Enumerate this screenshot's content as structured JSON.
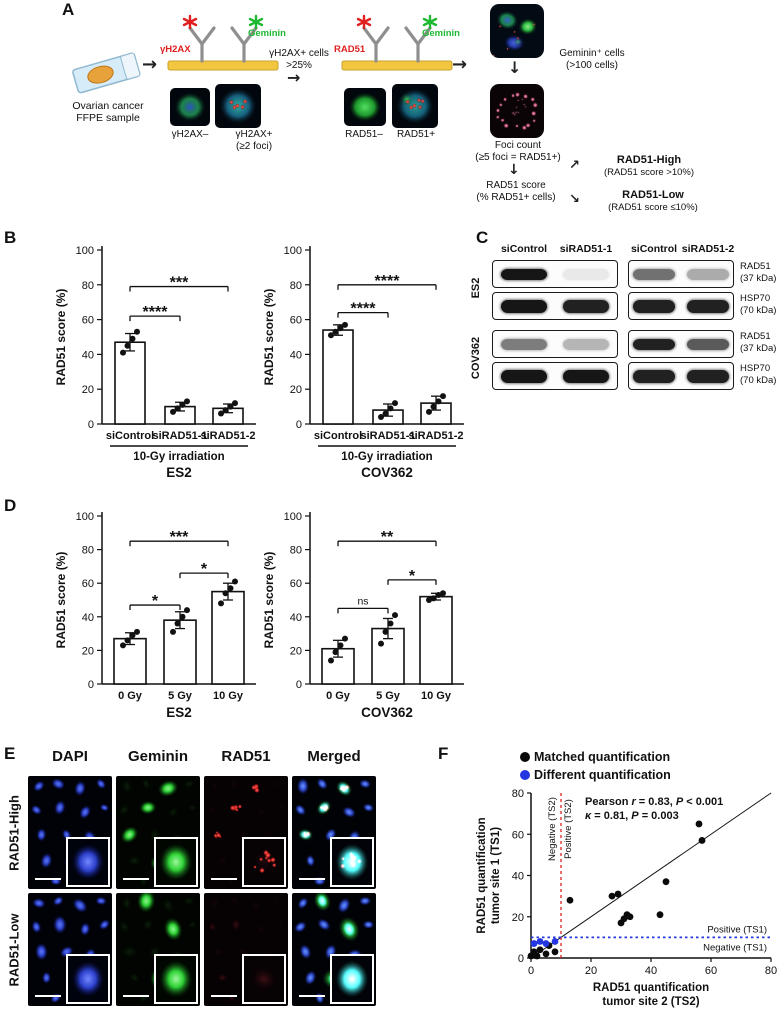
{
  "panel_labels": {
    "a": "A",
    "b": "B",
    "c": "C",
    "d": "D",
    "e": "E",
    "f": "F"
  },
  "icons": {
    "arrow_right": "→",
    "arrow_down": "↓",
    "arrow_up_right": "↗",
    "arrow_down_right": "↘"
  },
  "panel_a": {
    "sample_caption": "Ovarian cancer\nFFPE sample",
    "schematic1": {
      "red_label": "γH2AX",
      "green_label": "Geminin"
    },
    "img1_caption": "γH2AX–",
    "img2_caption": "γH2AX+\n(≥2 foci)",
    "arrow1_caption": "γH2AX+ cells\n>25%",
    "schematic2": {
      "red_label": "RAD51",
      "green_label": "Geminin"
    },
    "img3_caption": "RAD51–",
    "img4_caption": "RAD51+",
    "geminin_caption": "Geminin⁺ cells\n(>100 cells)",
    "foci_caption": "Foci count\n(≥5 foci = RAD51+)",
    "score_caption": "RAD51 score\n(% RAD51+ cells)",
    "high_title": "RAD51-High",
    "high_sub": "(RAD51 score >10%)",
    "low_title": "RAD51-Low",
    "low_sub": "(RAD51 score ≤10%)"
  },
  "panel_c": {
    "left_header": [
      "siControl",
      "siRAD51-1"
    ],
    "right_header": [
      "siControl",
      "siRAD51-2"
    ],
    "groups": [
      {
        "cell_line": "ES2",
        "rows": [
          {
            "protein": "RAD51",
            "kda": "(37 kDa)",
            "left": [
              1,
              0.08
            ],
            "right": [
              0.6,
              0.35
            ]
          },
          {
            "protein": "HSP70",
            "kda": "(70 kDa)",
            "left": [
              1,
              0.95
            ],
            "right": [
              0.95,
              0.95
            ]
          }
        ]
      },
      {
        "cell_line": "COV362",
        "rows": [
          {
            "protein": "RAD51",
            "kda": "(37 kDa)",
            "left": [
              0.55,
              0.3
            ],
            "right": [
              0.95,
              0.7
            ]
          },
          {
            "protein": "HSP70",
            "kda": "(70 kDa)",
            "left": [
              1,
              1
            ],
            "right": [
              0.95,
              0.95
            ]
          }
        ]
      }
    ]
  },
  "panel_e": {
    "col_headers": [
      "DAPI",
      "Geminin",
      "RAD51",
      "Merged"
    ],
    "row_labels": [
      "RAD51-High",
      "RAD51-Low"
    ]
  },
  "chart_data": [
    {
      "id": "B-ES2",
      "type": "bar",
      "title": "ES2",
      "ylabel": "RAD51 score (%)",
      "ylim": [
        0,
        100
      ],
      "ytick_step": 20,
      "group_label": "10-Gy irradiation",
      "categories": [
        "siControl",
        "siRAD51-1",
        "siRAD51-2"
      ],
      "values": [
        47,
        10,
        9
      ],
      "errors": [
        5,
        2.5,
        2.5
      ],
      "points": [
        [
          41,
          45,
          49,
          53
        ],
        [
          7,
          9,
          11,
          13
        ],
        [
          6,
          8,
          10,
          12
        ]
      ],
      "significance": [
        {
          "a": 0,
          "b": 1,
          "y": 62,
          "label": "****"
        },
        {
          "a": 0,
          "b": 2,
          "y": 79,
          "label": "***"
        }
      ]
    },
    {
      "id": "B-COV362",
      "type": "bar",
      "title": "COV362",
      "ylabel": "RAD51 score (%)",
      "ylim": [
        0,
        100
      ],
      "ytick_step": 20,
      "group_label": "10-Gy irradiation",
      "categories": [
        "siControl",
        "siRAD51-1",
        "siRAD51-2"
      ],
      "values": [
        54,
        8,
        12
      ],
      "errors": [
        3,
        3.5,
        4
      ],
      "points": [
        [
          51,
          53,
          55,
          57
        ],
        [
          4,
          6,
          9,
          12
        ],
        [
          7,
          10,
          13,
          16
        ]
      ],
      "significance": [
        {
          "a": 0,
          "b": 1,
          "y": 64,
          "label": "****"
        },
        {
          "a": 0,
          "b": 2,
          "y": 80,
          "label": "****"
        }
      ]
    },
    {
      "id": "D-ES2",
      "type": "bar",
      "title": "ES2",
      "ylabel": "RAD51 score (%)",
      "ylim": [
        0,
        100
      ],
      "ytick_step": 20,
      "categories": [
        "0 Gy",
        "5 Gy",
        "10 Gy"
      ],
      "values": [
        27,
        38,
        55
      ],
      "errors": [
        3.5,
        5,
        5
      ],
      "points": [
        [
          23,
          26,
          29,
          31
        ],
        [
          31,
          36,
          40,
          44
        ],
        [
          48,
          54,
          57,
          61
        ]
      ],
      "significance": [
        {
          "a": 0,
          "b": 1,
          "y": 47,
          "label": "*"
        },
        {
          "a": 1,
          "b": 2,
          "y": 66,
          "label": "*"
        },
        {
          "a": 0,
          "b": 2,
          "y": 85,
          "label": "***"
        }
      ]
    },
    {
      "id": "D-COV362",
      "type": "bar",
      "title": "COV362",
      "ylabel": "RAD51 score (%)",
      "ylim": [
        0,
        100
      ],
      "ytick_step": 20,
      "categories": [
        "0 Gy",
        "5 Gy",
        "10 Gy"
      ],
      "values": [
        21,
        33,
        52
      ],
      "errors": [
        5,
        6,
        2
      ],
      "points": [
        [
          14,
          19,
          23,
          27
        ],
        [
          24,
          31,
          36,
          41
        ],
        [
          50,
          51,
          53,
          54
        ]
      ],
      "significance": [
        {
          "a": 0,
          "b": 1,
          "y": 45,
          "label": "ns"
        },
        {
          "a": 1,
          "b": 2,
          "y": 62,
          "label": "*"
        },
        {
          "a": 0,
          "b": 2,
          "y": 85,
          "label": "**"
        }
      ]
    },
    {
      "id": "F",
      "type": "scatter",
      "xlabel_lines": [
        "RAD51 quantification",
        "tumor site 2 (TS2)"
      ],
      "ylabel_lines": [
        "RAD51 quantification",
        "tumor site 1 (TS1)"
      ],
      "xlim": [
        0,
        80
      ],
      "ylim": [
        0,
        80
      ],
      "ticks": [
        0,
        20,
        40,
        60,
        80
      ],
      "identity_line": true,
      "vline": {
        "x": 10,
        "color": "#e02020",
        "label_left": "Negative (TS2)",
        "label_right": "Positive (TS2)"
      },
      "hline": {
        "y": 10,
        "color": "#2336e0",
        "label_above": "Positive (TS1)",
        "label_below": "Negative (TS1)"
      },
      "annotation_lines": [
        [
          {
            "t": "Pearson "
          },
          {
            "t": "r",
            "i": true
          },
          {
            "t": " = 0.83, "
          },
          {
            "t": "P",
            "i": true
          },
          {
            "t": " < 0.001"
          }
        ],
        [
          {
            "t": "κ",
            "i": true
          },
          {
            "t": " = 0.81, "
          },
          {
            "t": "P",
            "i": true
          },
          {
            "t": " = 0.003"
          }
        ]
      ],
      "series": [
        {
          "name": "Matched quantification",
          "color": "#0a0a0a",
          "points": [
            [
              0,
              1
            ],
            [
              1,
              3
            ],
            [
              2,
              1
            ],
            [
              3,
              4
            ],
            [
              5,
              2
            ],
            [
              6,
              6
            ],
            [
              8,
              3
            ],
            [
              13,
              28
            ],
            [
              27,
              30
            ],
            [
              29,
              31
            ],
            [
              30,
              17
            ],
            [
              31,
              19
            ],
            [
              32,
              21
            ],
            [
              33,
              20
            ],
            [
              43,
              21
            ],
            [
              45,
              37
            ],
            [
              56,
              65
            ],
            [
              57,
              57
            ]
          ]
        },
        {
          "name": "Different quantification",
          "color": "#2336e0",
          "points": [
            [
              1,
              7
            ],
            [
              3,
              8
            ],
            [
              5,
              7
            ],
            [
              8,
              8
            ]
          ]
        }
      ]
    }
  ]
}
